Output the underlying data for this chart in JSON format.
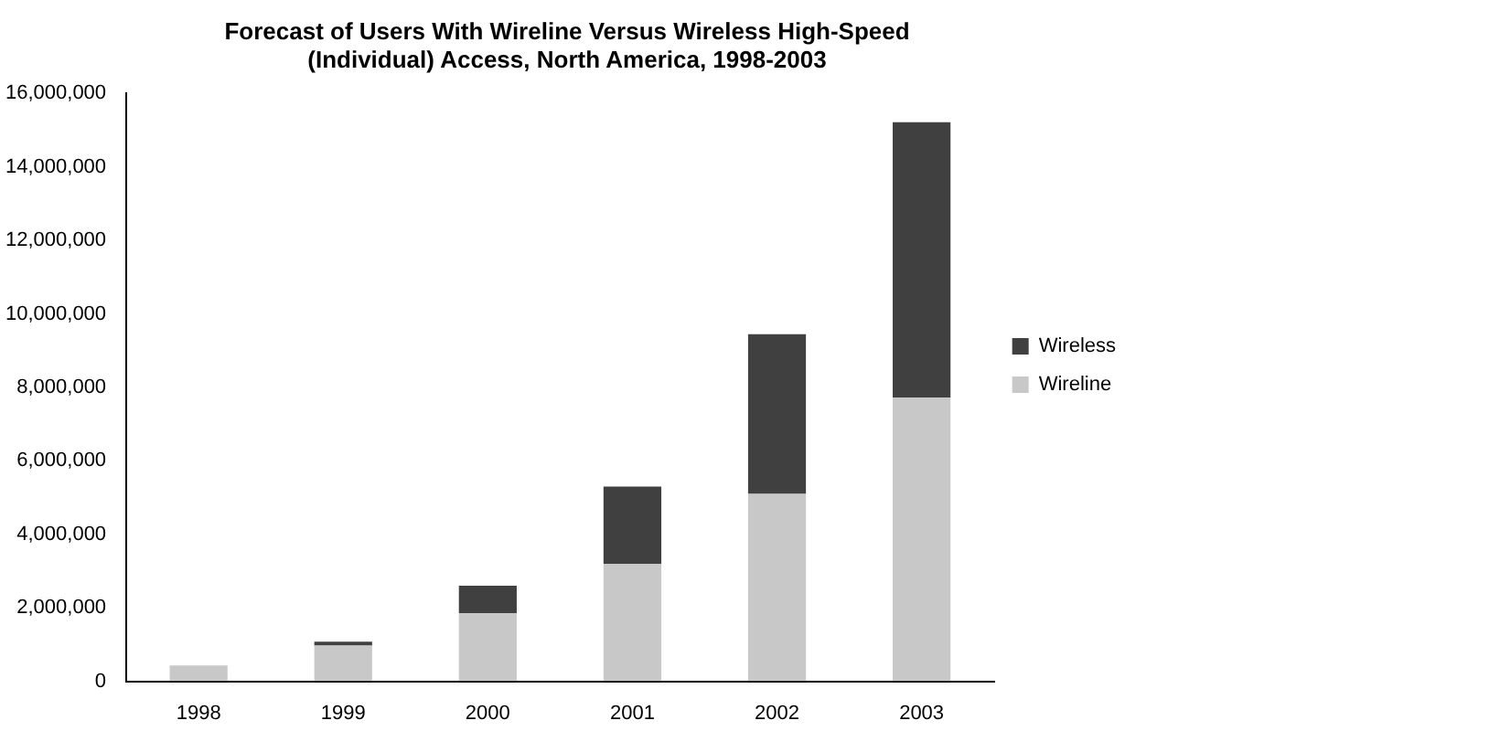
{
  "chart_data": {
    "type": "bar",
    "stacked": true,
    "title": [
      "Forecast of Users With Wireline Versus Wireless High-Speed",
      "(Individual) Access, North America, 1998-2003"
    ],
    "categories": [
      "1998",
      "1999",
      "2000",
      "2001",
      "2002",
      "2003"
    ],
    "series": [
      {
        "name": "Wireline",
        "color": "#c8c8c8",
        "values": [
          430000,
          970000,
          1850000,
          3200000,
          5100000,
          7720000
        ]
      },
      {
        "name": "Wireless",
        "color": "#404040",
        "values": [
          null,
          110000,
          750000,
          2100000,
          4350000,
          7500000
        ]
      }
    ],
    "ylim": [
      0,
      16000000
    ],
    "yticks": [
      0,
      {
        "value": 2000000,
        "label": "2,000,000"
      },
      {
        "value": 4000000,
        "label": "4,000,000"
      },
      {
        "value": 6000000,
        "label": "6,000,000"
      },
      {
        "value": 8000000,
        "label": "8,000,000"
      },
      {
        "value": 10000000,
        "label": "10,000,000"
      },
      {
        "value": 12000000,
        "label": "12,000,000"
      },
      {
        "value": 14000000,
        "label": "14,000,000"
      },
      {
        "value": 16000000,
        "label": "16,000,000"
      }
    ],
    "grid": false,
    "legend": "right"
  }
}
